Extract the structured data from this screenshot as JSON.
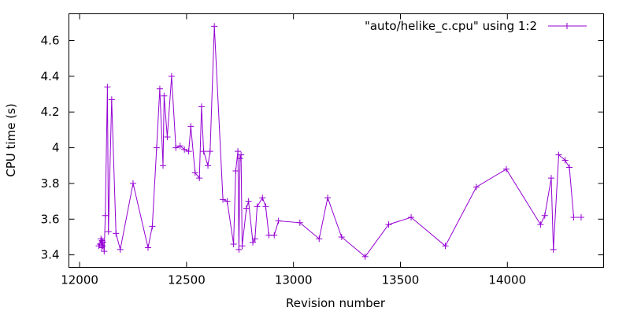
{
  "chart_data": {
    "type": "line",
    "title": "",
    "xlabel": "Revision number",
    "ylabel": "CPU time (s)",
    "xlim": [
      11950,
      14450
    ],
    "ylim": [
      3.33,
      4.75
    ],
    "xticks": [
      12000,
      12500,
      13000,
      13500,
      14000
    ],
    "xtick_labels": [
      "12000",
      "12500",
      "13000",
      "13500",
      "14000"
    ],
    "yticks": [
      3.4,
      3.6,
      3.8,
      4.0,
      4.2,
      4.4,
      4.6
    ],
    "ytick_labels": [
      "3.4",
      "3.6",
      "3.8",
      "4",
      "4.2",
      "4.4",
      "4.6"
    ],
    "grid": false,
    "legend_position": "top-right",
    "series": [
      {
        "name": "\"auto/helike_c.cpu\" using 1:2",
        "color": "#9400d3",
        "marker": "plus",
        "x": [
          12090,
          12095,
          12100,
          12103,
          12105,
          12108,
          12110,
          12115,
          12120,
          12130,
          12135,
          12150,
          12170,
          12190,
          12250,
          12320,
          12340,
          12360,
          12375,
          12390,
          12395,
          12410,
          12430,
          12450,
          12470,
          12490,
          12510,
          12520,
          12540,
          12560,
          12570,
          12580,
          12600,
          12610,
          12630,
          12670,
          12690,
          12720,
          12730,
          12740,
          12745,
          12750,
          12755,
          12760,
          12780,
          12790,
          12810,
          12820,
          12830,
          12855,
          12870,
          12885,
          12910,
          12930,
          13030,
          13120,
          13160,
          13225,
          13335,
          13445,
          13550,
          13710,
          13855,
          13995,
          14155,
          14175,
          14205,
          14215,
          14240,
          14270,
          14290,
          14310,
          14345
        ],
        "y": [
          3.45,
          3.46,
          3.49,
          3.44,
          3.48,
          3.45,
          3.47,
          3.42,
          3.62,
          4.34,
          3.53,
          4.27,
          3.52,
          3.43,
          3.8,
          3.44,
          3.56,
          4.0,
          4.33,
          3.9,
          4.29,
          4.06,
          4.4,
          4.0,
          4.01,
          3.99,
          3.98,
          4.12,
          3.86,
          3.83,
          4.23,
          3.98,
          3.9,
          3.98,
          4.68,
          3.71,
          3.7,
          3.46,
          3.87,
          3.98,
          3.43,
          3.94,
          3.96,
          3.45,
          3.66,
          3.7,
          3.47,
          3.49,
          3.67,
          3.72,
          3.67,
          3.51,
          3.51,
          3.59,
          3.58,
          3.49,
          3.72,
          3.5,
          3.39,
          3.57,
          3.61,
          3.45,
          3.78,
          3.88,
          3.57,
          3.62,
          3.83,
          3.43,
          3.96,
          3.93,
          3.89,
          3.61,
          3.61
        ]
      }
    ]
  }
}
